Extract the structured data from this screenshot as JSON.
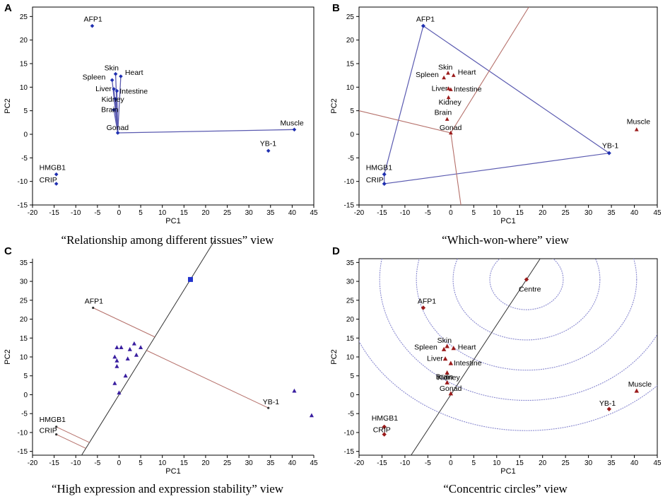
{
  "figure": {
    "panels": [
      {
        "letter": "A",
        "caption": "“Relationship among different tissues” view"
      },
      {
        "letter": "B",
        "caption": "“Which-won-where” view"
      },
      {
        "letter": "C",
        "caption": "“High expression and expression stability” view"
      },
      {
        "letter": "D",
        "caption": "“Concentric circles” view"
      }
    ]
  },
  "colors": {
    "blue": "#1f2fb0",
    "darkred": "#9b1b1b",
    "line_blue": "#5a5ab0",
    "line_red": "#b5706a",
    "circle": "#8a8ad0",
    "axis": "#000000"
  },
  "chart_data": [
    {
      "type": "scatter",
      "panel": "A",
      "title": "",
      "xlabel": "PC1",
      "ylabel": "PC2",
      "xlim": [
        -20,
        45
      ],
      "ylim": [
        -15,
        27
      ],
      "xticks": [
        -20,
        -15,
        -10,
        -5,
        0,
        5,
        10,
        15,
        20,
        25,
        30,
        35,
        40,
        45
      ],
      "yticks": [
        -15,
        -10,
        -5,
        0,
        5,
        10,
        15,
        20,
        25
      ],
      "points": [
        {
          "label": "AFP1",
          "x": -6.2,
          "y": 23.0
        },
        {
          "label": "Skin",
          "x": -0.8,
          "y": 12.8
        },
        {
          "label": "Heart",
          "x": 0.4,
          "y": 12.3
        },
        {
          "label": "Spleen",
          "x": -1.6,
          "y": 11.5
        },
        {
          "label": "Liver",
          "x": -1.2,
          "y": 9.6
        },
        {
          "label": "Intestine",
          "x": -0.5,
          "y": 9.2
        },
        {
          "label": "Kidney",
          "x": -0.8,
          "y": 7.5
        },
        {
          "label": "Brain",
          "x": -1.2,
          "y": 5.2
        },
        {
          "label": "Gonad",
          "x": -0.3,
          "y": 0.3
        },
        {
          "label": "Muscle",
          "x": 40.5,
          "y": 1.0
        },
        {
          "label": "YB-1",
          "x": 34.5,
          "y": -3.5
        },
        {
          "label": "HMGB1",
          "x": -14.5,
          "y": -8.5
        },
        {
          "label": "CRIP",
          "x": -14.5,
          "y": -10.5
        }
      ]
    },
    {
      "type": "scatter",
      "panel": "B",
      "title": "",
      "xlabel": "PC1",
      "ylabel": "PC2",
      "xlim": [
        -20,
        45
      ],
      "ylim": [
        -15,
        27
      ],
      "xticks": [
        -20,
        -15,
        -10,
        -5,
        0,
        5,
        10,
        15,
        20,
        25,
        30,
        35,
        40,
        45
      ],
      "yticks": [
        -15,
        -10,
        -5,
        0,
        5,
        10,
        15,
        20,
        25
      ],
      "genes": [
        {
          "label": "AFP1",
          "x": -6.0,
          "y": 23.0
        },
        {
          "label": "YB-1",
          "x": 34.5,
          "y": -4.0
        },
        {
          "label": "HMGB1",
          "x": -14.5,
          "y": -8.5
        },
        {
          "label": "CRIP",
          "x": -14.5,
          "y": -10.5
        }
      ],
      "tissues": [
        {
          "label": "Skin",
          "x": -0.6,
          "y": 13.0
        },
        {
          "label": "Heart",
          "x": 0.6,
          "y": 12.5
        },
        {
          "label": "Spleen",
          "x": -1.5,
          "y": 12.0
        },
        {
          "label": "Liver",
          "x": -0.5,
          "y": 9.7
        },
        {
          "label": "Intestine",
          "x": 0.0,
          "y": 9.5
        },
        {
          "label": "Kidney",
          "x": -0.5,
          "y": 7.8
        },
        {
          "label": "Brain",
          "x": -0.8,
          "y": 3.2
        },
        {
          "label": "Gonad",
          "x": 0.0,
          "y": 0.3
        },
        {
          "label": "Muscle",
          "x": 40.5,
          "y": 1.0
        }
      ]
    },
    {
      "type": "scatter",
      "panel": "C",
      "title": "",
      "xlabel": "PC1",
      "ylabel": "PC2",
      "xlim": [
        -20,
        45
      ],
      "ylim": [
        -16,
        36
      ],
      "xticks": [
        -20,
        -15,
        -10,
        -5,
        0,
        5,
        10,
        15,
        20,
        25,
        30,
        35,
        40,
        45
      ],
      "yticks": [
        -15,
        -10,
        -5,
        0,
        5,
        10,
        15,
        20,
        25,
        30,
        35
      ],
      "genes": [
        {
          "label": "AFP1",
          "x": -6.0,
          "y": 23.0
        },
        {
          "label": "YB-1",
          "x": 34.5,
          "y": -3.5
        },
        {
          "label": "HMGB1",
          "x": -14.5,
          "y": -8.5
        },
        {
          "label": "CRIP",
          "x": -14.5,
          "y": -10.5
        }
      ],
      "tissues": [
        {
          "x": -0.5,
          "y": 12.5
        },
        {
          "x": 0.5,
          "y": 12.5
        },
        {
          "x": 2.5,
          "y": 12.0
        },
        {
          "x": 3.5,
          "y": 13.5
        },
        {
          "x": 5.0,
          "y": 12.5
        },
        {
          "x": -1.0,
          "y": 10.0
        },
        {
          "x": -0.5,
          "y": 9.0
        },
        {
          "x": 2.0,
          "y": 9.5
        },
        {
          "x": 4.0,
          "y": 10.5
        },
        {
          "x": -0.5,
          "y": 7.5
        },
        {
          "x": 1.5,
          "y": 5.0
        },
        {
          "x": -1.0,
          "y": 3.0
        },
        {
          "x": 0.0,
          "y": 0.5
        },
        {
          "x": 40.5,
          "y": 1.0
        },
        {
          "x": 44.5,
          "y": -5.5
        }
      ],
      "marker": {
        "x": 16.5,
        "y": 30.5
      }
    },
    {
      "type": "scatter",
      "panel": "D",
      "title": "",
      "xlabel": "PC1",
      "ylabel": "PC2",
      "xlim": [
        -20,
        45
      ],
      "ylim": [
        -16,
        36
      ],
      "xticks": [
        -20,
        -15,
        -10,
        -5,
        0,
        5,
        10,
        15,
        20,
        25,
        30,
        35,
        40,
        45
      ],
      "yticks": [
        -15,
        -10,
        -5,
        0,
        5,
        10,
        15,
        20,
        25,
        30,
        35
      ],
      "centre": {
        "label": "Centre",
        "x": 16.5,
        "y": 30.5
      },
      "genes": [
        {
          "label": "AFP1",
          "x": -6.0,
          "y": 23.0
        },
        {
          "label": "YB-1",
          "x": 34.5,
          "y": -3.8
        },
        {
          "label": "HMGB1",
          "x": -14.5,
          "y": -8.5
        },
        {
          "label": "CRIP",
          "x": -14.5,
          "y": -10.5
        }
      ],
      "tissues": [
        {
          "label": "Skin",
          "x": -0.8,
          "y": 12.8
        },
        {
          "label": "Heart",
          "x": 0.6,
          "y": 12.3
        },
        {
          "label": "Spleen",
          "x": -1.5,
          "y": 12.0
        },
        {
          "label": "Liver",
          "x": -1.2,
          "y": 9.5
        },
        {
          "label": "Intestine",
          "x": 0.0,
          "y": 8.3
        },
        {
          "label": "Kidney",
          "x": -0.8,
          "y": 5.8
        },
        {
          "label": "Brain",
          "x": -0.8,
          "y": 3.2
        },
        {
          "label": "Gonad",
          "x": 0.0,
          "y": 0.3
        },
        {
          "label": "Muscle",
          "x": 40.5,
          "y": 1.0
        }
      ]
    }
  ]
}
